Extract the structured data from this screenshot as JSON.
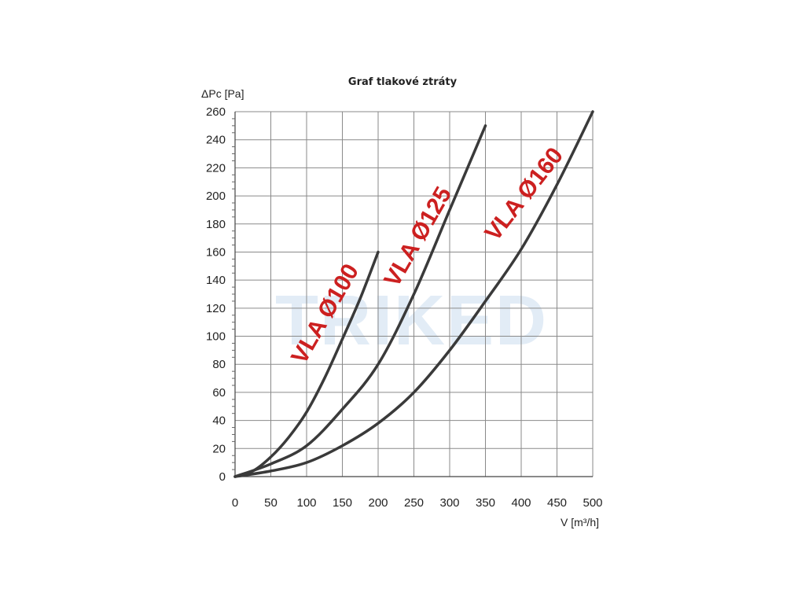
{
  "chart_data": {
    "type": "line",
    "title": "Graf tlakové ztráty",
    "xlabel": "V [m³/h]",
    "ylabel": "ΔPc [Pa]",
    "xlim": [
      0,
      500
    ],
    "ylim": [
      0,
      260
    ],
    "x_ticks": [
      0,
      50,
      100,
      150,
      200,
      250,
      300,
      350,
      400,
      450,
      500
    ],
    "y_ticks": [
      0,
      20,
      40,
      60,
      80,
      100,
      120,
      140,
      160,
      180,
      200,
      220,
      240,
      260
    ],
    "grid": true,
    "series": [
      {
        "name": "VLA Ø100",
        "points": [
          [
            0,
            0
          ],
          [
            25,
            4
          ],
          [
            50,
            14
          ],
          [
            75,
            28
          ],
          [
            100,
            46
          ],
          [
            125,
            70
          ],
          [
            150,
            98
          ],
          [
            175,
            127
          ],
          [
            200,
            160
          ]
        ]
      },
      {
        "name": "VLA Ø125",
        "points": [
          [
            0,
            0
          ],
          [
            50,
            9
          ],
          [
            100,
            22
          ],
          [
            150,
            48
          ],
          [
            200,
            80
          ],
          [
            250,
            130
          ],
          [
            300,
            190
          ],
          [
            350,
            250
          ]
        ]
      },
      {
        "name": "VLA Ø160",
        "points": [
          [
            0,
            0
          ],
          [
            50,
            4
          ],
          [
            100,
            10
          ],
          [
            150,
            22
          ],
          [
            200,
            38
          ],
          [
            250,
            60
          ],
          [
            300,
            90
          ],
          [
            350,
            125
          ],
          [
            400,
            162
          ],
          [
            450,
            208
          ],
          [
            500,
            260
          ]
        ]
      }
    ],
    "colors": {
      "line": "#3a3a3a",
      "grid": "#8a8a8a",
      "label": "#cc2020"
    }
  },
  "watermark": "TRIKED"
}
